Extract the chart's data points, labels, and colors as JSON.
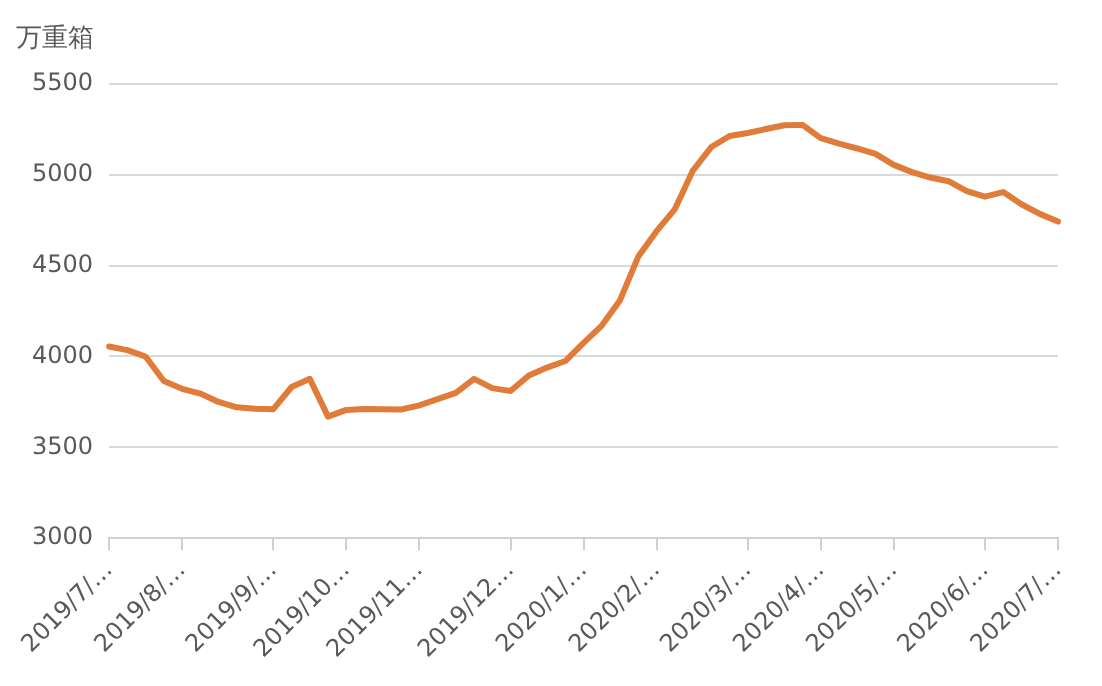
{
  "chart_data": {
    "type": "line",
    "ylabel": "万重箱",
    "categories": [
      "2019/7/…",
      null,
      null,
      null,
      "2019/8/…",
      null,
      null,
      null,
      null,
      "2019/9/…",
      null,
      null,
      null,
      "2019/10…",
      null,
      null,
      null,
      "2019/11…",
      null,
      null,
      null,
      null,
      "2019/12…",
      null,
      null,
      null,
      "2020/1/…",
      null,
      null,
      null,
      "2020/2/…",
      null,
      null,
      null,
      null,
      "2020/3/…",
      null,
      null,
      null,
      "2020/4/…",
      null,
      null,
      null,
      "2020/5/…",
      null,
      null,
      null,
      null,
      "2020/6/…",
      null,
      null,
      null,
      "2020/7/…"
    ],
    "series": [
      {
        "color": "#e07b39",
        "values": [
          4055,
          4035,
          4000,
          3865,
          3822,
          3796,
          3750,
          3720,
          3712,
          3710,
          3832,
          3877,
          3669,
          3706,
          3711,
          3710,
          3708,
          3731,
          3765,
          3800,
          3877,
          3826,
          3810,
          3895,
          3939,
          3975,
          4075,
          4170,
          4310,
          4550,
          4690,
          4810,
          5025,
          5153,
          5214,
          5230,
          5252,
          5273,
          5275,
          5202,
          5172,
          5145,
          5115,
          5055,
          5015,
          4985,
          4965,
          4910,
          4880,
          4905,
          4838,
          4785,
          4743
        ]
      }
    ],
    "ylim": [
      3000,
      5500
    ],
    "yticks": [
      3000,
      3500,
      4000,
      4500,
      5000,
      5500
    ],
    "grid": "y",
    "legend": false,
    "marker": "none",
    "line_style": "solid"
  }
}
